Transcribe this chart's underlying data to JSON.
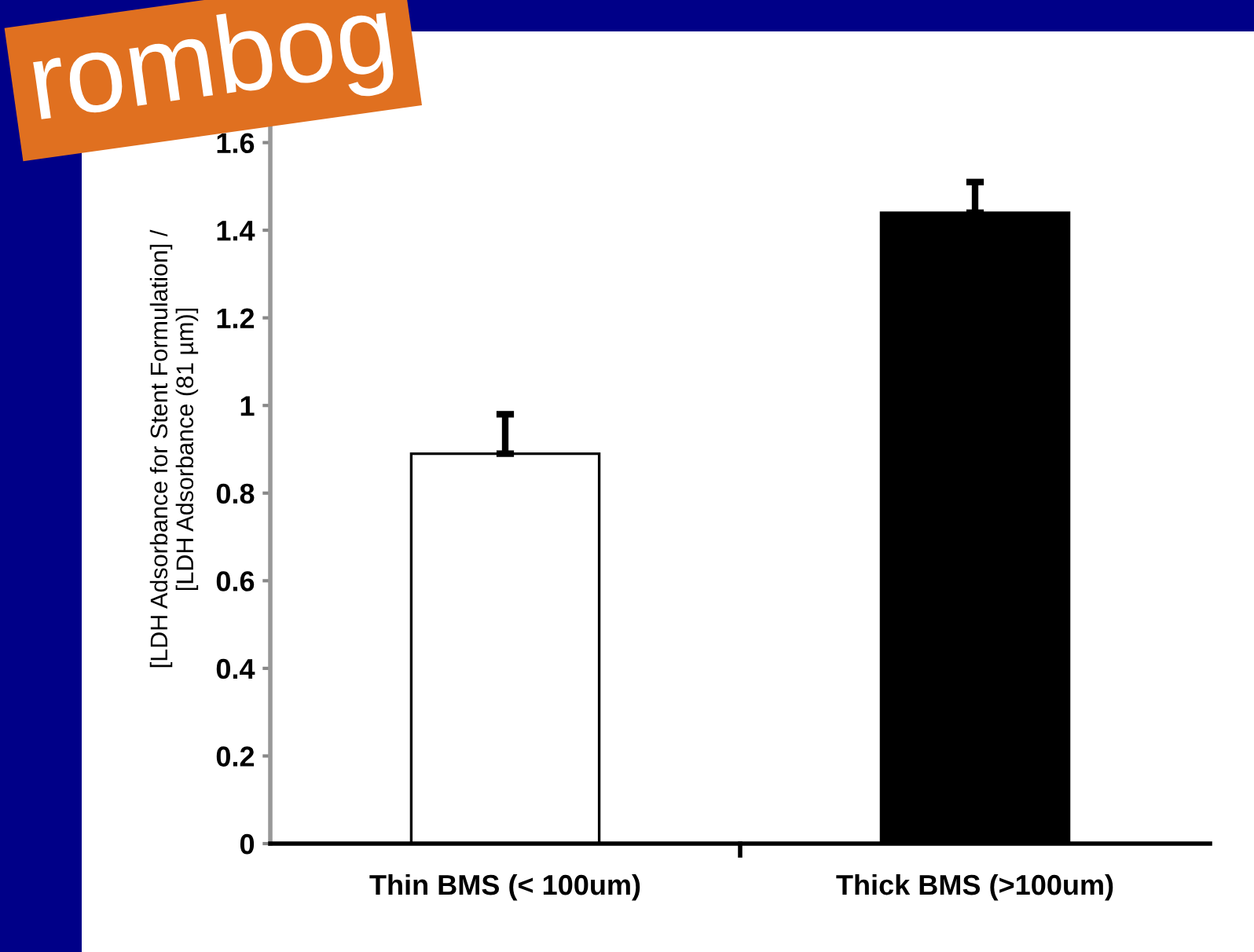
{
  "chart_data": {
    "type": "bar",
    "title": "rombog",
    "ylabel": "[LDH Adsorbance for Stent Formulation] /\n[LDH Adsorbance (81 µm)]",
    "categories": [
      "Thin BMS (< 100um)",
      "Thick BMS (>100um)"
    ],
    "values": [
      0.89,
      1.44
    ],
    "colors": [
      "#ffffff",
      "#000000"
    ],
    "errors": [
      [
        0.89,
        0.98
      ],
      [
        1.44,
        1.51
      ]
    ],
    "ylim": [
      0,
      1.8
    ],
    "yticks": [
      0,
      0.2,
      0.4,
      0.6,
      0.8,
      1,
      1.2,
      1.4,
      1.6
    ],
    "grid": false,
    "legend": false
  }
}
